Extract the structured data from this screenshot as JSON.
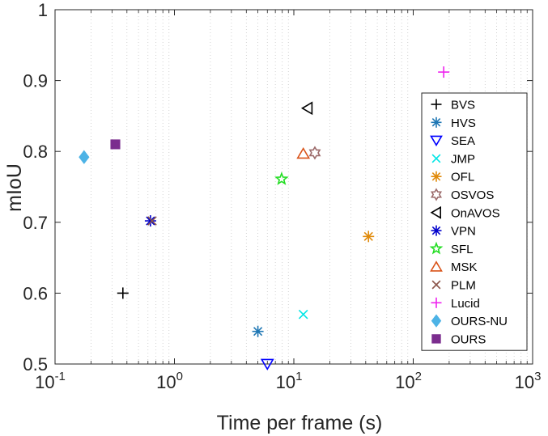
{
  "chart_data": {
    "type": "scatter",
    "xscale": "log",
    "xlabel": "Time per frame (s)",
    "ylabel": "mIoU",
    "xlim": [
      0.1,
      1000
    ],
    "ylim": [
      0.5,
      1.0
    ],
    "x_ticks": [
      {
        "base": "10",
        "exp": "-1",
        "value": 0.1
      },
      {
        "base": "10",
        "exp": "0",
        "value": 1
      },
      {
        "base": "10",
        "exp": "1",
        "value": 10
      },
      {
        "base": "10",
        "exp": "2",
        "value": 100
      },
      {
        "base": "10",
        "exp": "3",
        "value": 1000
      }
    ],
    "y_ticks": [
      "0.5",
      "0.6",
      "0.7",
      "0.8",
      "0.9",
      "1"
    ],
    "grid": "x minor dotted",
    "legend_position": "right",
    "series": [
      {
        "name": "BVS",
        "marker": "plus",
        "color": "#000000",
        "x": 0.37,
        "y": 0.6
      },
      {
        "name": "HVS",
        "marker": "asterisk",
        "color": "#1f77b4",
        "x": 5.0,
        "y": 0.546
      },
      {
        "name": "SEA",
        "marker": "triangle-down",
        "color": "#0000ff",
        "x": 6.0,
        "y": 0.5
      },
      {
        "name": "JMP",
        "marker": "x",
        "color": "#00e5e5",
        "x": 12.0,
        "y": 0.57
      },
      {
        "name": "OFL",
        "marker": "asterisk",
        "color": "#e08a0b",
        "x": 42.2,
        "y": 0.68
      },
      {
        "name": "OSVOS",
        "marker": "hexagram",
        "color": "#9c6b6b",
        "x": 15.0,
        "y": 0.798
      },
      {
        "name": "OnAVOS",
        "marker": "triangle-left",
        "color": "#000000",
        "x": 13.0,
        "y": 0.861
      },
      {
        "name": "VPN",
        "marker": "asterisk",
        "color": "#0000cc",
        "x": 0.63,
        "y": 0.702
      },
      {
        "name": "SFL",
        "marker": "pentagram",
        "color": "#22dd22",
        "x": 7.9,
        "y": 0.761
      },
      {
        "name": "MSK",
        "marker": "triangle-up",
        "color": "#d95319",
        "x": 12.0,
        "y": 0.797
      },
      {
        "name": "PLM",
        "marker": "x",
        "color": "#8c564b",
        "x": 0.65,
        "y": 0.702
      },
      {
        "name": "Lucid",
        "marker": "plus",
        "color": "#ee22ee",
        "x": 180,
        "y": 0.912
      },
      {
        "name": "OURS-NU",
        "marker": "diamond-filled",
        "color": "#4db3e6",
        "x": 0.175,
        "y": 0.792
      },
      {
        "name": "OURS",
        "marker": "square-filled",
        "color": "#7b2d8e",
        "x": 0.32,
        "y": 0.81
      }
    ]
  }
}
